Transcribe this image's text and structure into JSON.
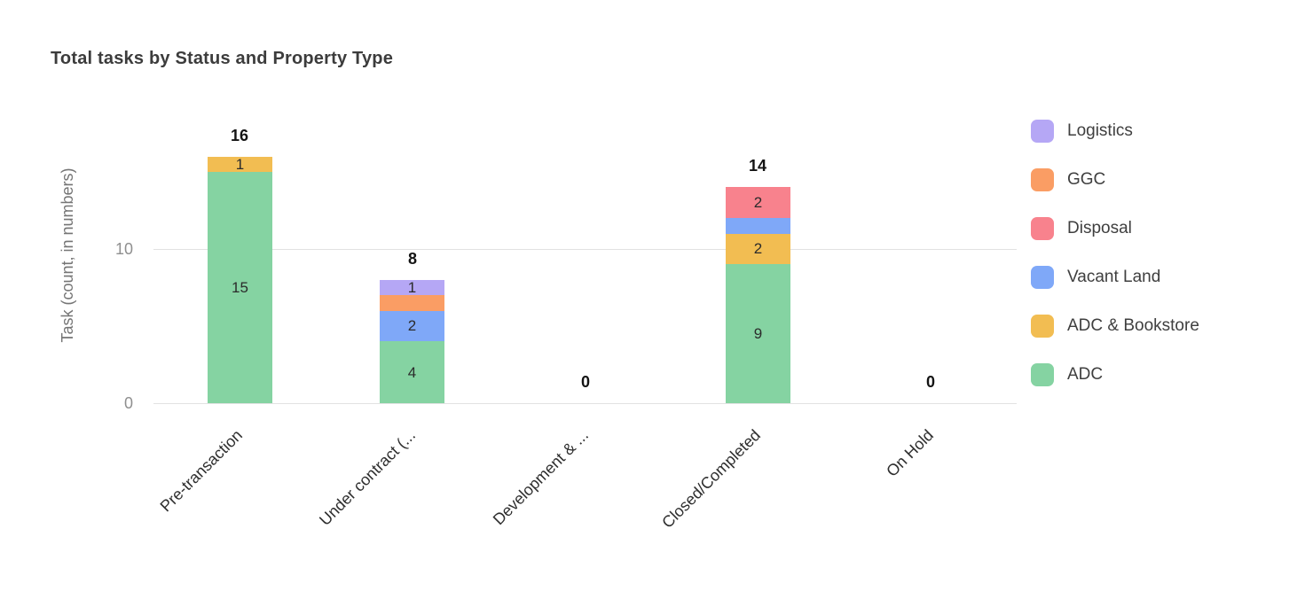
{
  "chart_data": {
    "type": "bar",
    "stacked": true,
    "title": "Total tasks by Status and Property Type",
    "ylabel": "Task (count, in numbers)",
    "xlabel": "",
    "categories": [
      "Pre-transaction",
      "Under contract (...",
      "Development & ...",
      "Closed/Completed",
      "On Hold"
    ],
    "series": [
      {
        "name": "ADC",
        "color": "#85d3a2",
        "values": [
          15,
          4,
          0,
          9,
          0
        ],
        "labels": [
          "15",
          "4",
          "",
          "9",
          ""
        ]
      },
      {
        "name": "ADC & Bookstore",
        "color": "#f2bd52",
        "values": [
          1,
          0,
          0,
          2,
          0
        ],
        "labels": [
          "1",
          "",
          "",
          "2",
          ""
        ]
      },
      {
        "name": "Vacant Land",
        "color": "#7fa8f8",
        "values": [
          0,
          2,
          0,
          1,
          0
        ],
        "labels": [
          "",
          "2",
          "",
          "",
          ""
        ]
      },
      {
        "name": "Disposal",
        "color": "#f8828d",
        "values": [
          0,
          0,
          0,
          2,
          0
        ],
        "labels": [
          "",
          "",
          "",
          "2",
          ""
        ]
      },
      {
        "name": "GGC",
        "color": "#fa9d64",
        "values": [
          0,
          1,
          0,
          0,
          0
        ],
        "labels": [
          "",
          "",
          "",
          "",
          ""
        ]
      },
      {
        "name": "Logistics",
        "color": "#b5a7f5",
        "values": [
          0,
          1,
          0,
          0,
          0
        ],
        "labels": [
          "",
          "1",
          "",
          "",
          ""
        ]
      }
    ],
    "totals": [
      "16",
      "8",
      "0",
      "14",
      "0"
    ],
    "yticks": [
      {
        "value": 0,
        "label": "0"
      },
      {
        "value": 10,
        "label": "10"
      }
    ],
    "ylim": [
      0,
      16
    ],
    "grid": "horizontal",
    "legend_position": "right",
    "legend": [
      "Logistics",
      "GGC",
      "Disposal",
      "Vacant Land",
      "ADC & Bookstore",
      "ADC"
    ]
  }
}
